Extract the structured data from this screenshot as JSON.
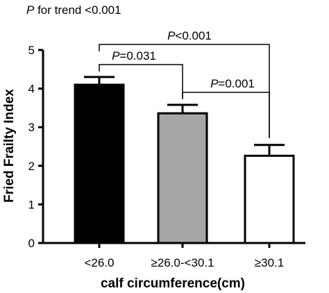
{
  "chart_data": {
    "type": "bar",
    "categories": [
      "<26.0",
      "≥26.0-<30.1",
      "≥30.1"
    ],
    "values": [
      4.1,
      3.36,
      2.26
    ],
    "errors": [
      0.2,
      0.22,
      0.28
    ],
    "bar_colors": [
      "#000000",
      "#a6a6a6",
      "#ffffff"
    ],
    "title": "",
    "xlabel": "calf circumference(cm)",
    "ylabel": "Fried Frailty Index",
    "ylim": [
      0,
      5
    ],
    "yticks": [
      "0",
      "1",
      "2",
      "3",
      "4",
      "5"
    ],
    "trend": {
      "p_letter": "P",
      "text": " for trend <0.001"
    },
    "comparisons": [
      {
        "from": 0,
        "to": 2,
        "p_letter": "P",
        "text": "<0.001"
      },
      {
        "from": 0,
        "to": 1,
        "p_letter": "P",
        "text": "=0.031"
      },
      {
        "from": 1,
        "to": 2,
        "p_letter": "P",
        "text": "=0.001"
      }
    ],
    "grid": false
  }
}
